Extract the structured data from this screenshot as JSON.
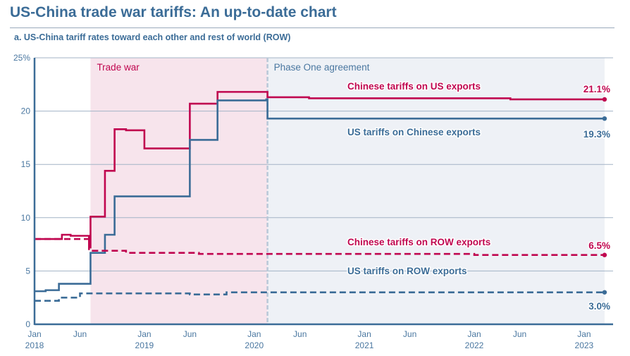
{
  "title": "US-China trade war tariffs: An up-to-date chart",
  "subtitle": "a. US-China tariff rates toward each other and rest of world (ROW)",
  "colors": {
    "china": "#c0064f",
    "us": "#3b6c97",
    "trade_war_bg": "#f7e4ec",
    "phase_one_bg": "#eef1f6",
    "grid": "#a3b3c6"
  },
  "chart_data": {
    "type": "line",
    "step": true,
    "x_range": [
      "2018-01-01",
      "2023-03-10"
    ],
    "ylim": [
      0,
      25
    ],
    "y_ticks": [
      {
        "value": 0,
        "label": "0"
      },
      {
        "value": 5,
        "label": "5"
      },
      {
        "value": 10,
        "label": "10"
      },
      {
        "value": 15,
        "label": "15"
      },
      {
        "value": 20,
        "label": "20"
      },
      {
        "value": 25,
        "label": "25%"
      }
    ],
    "x_ticks": [
      {
        "date": "2018-01-01",
        "label": "Jan",
        "year": "2018"
      },
      {
        "date": "2018-06-01",
        "label": "Jun",
        "year": ""
      },
      {
        "date": "2019-01-01",
        "label": "Jan",
        "year": "2019"
      },
      {
        "date": "2019-06-01",
        "label": "Jun",
        "year": ""
      },
      {
        "date": "2020-01-01",
        "label": "Jan",
        "year": "2020"
      },
      {
        "date": "2020-06-01",
        "label": "Jun",
        "year": ""
      },
      {
        "date": "2021-01-01",
        "label": "Jan",
        "year": "2021"
      },
      {
        "date": "2021-06-01",
        "label": "Jun",
        "year": ""
      },
      {
        "date": "2022-01-01",
        "label": "Jan",
        "year": "2022"
      },
      {
        "date": "2022-06-01",
        "label": "Jun",
        "year": ""
      },
      {
        "date": "2023-01-01",
        "label": "Jan",
        "year": "2023"
      }
    ],
    "grid": true,
    "regions": [
      {
        "label": "Trade war",
        "start": "2018-07-06",
        "end": "2020-02-14",
        "color": "#f7e4ec",
        "text_color": "#c0064f"
      },
      {
        "label": "Phase One agreement",
        "start": "2020-02-14",
        "end": "2023-03-10",
        "color": "#eef1f6",
        "text_color": "#4a77a0"
      }
    ],
    "series": [
      {
        "name": "Chinese tariffs on US exports",
        "end_label": "21.1%",
        "color": "#c0064f",
        "dashed": false,
        "points": [
          [
            "2018-01-01",
            8.0
          ],
          [
            "2018-04-02",
            8.4
          ],
          [
            "2018-05-01",
            8.3
          ],
          [
            "2018-07-01",
            7.2
          ],
          [
            "2018-07-06",
            10.1
          ],
          [
            "2018-08-23",
            14.4
          ],
          [
            "2018-09-24",
            18.3
          ],
          [
            "2018-11-01",
            18.2
          ],
          [
            "2019-01-01",
            16.5
          ],
          [
            "2019-06-01",
            20.7
          ],
          [
            "2019-09-01",
            21.8
          ],
          [
            "2020-02-14",
            21.3
          ],
          [
            "2020-07-01",
            21.2
          ],
          [
            "2022-05-01",
            21.1
          ],
          [
            "2023-03-10",
            21.1
          ]
        ]
      },
      {
        "name": "US tariffs on Chinese exports",
        "end_label": "19.3%",
        "color": "#3b6c97",
        "dashed": false,
        "points": [
          [
            "2018-01-01",
            3.1
          ],
          [
            "2018-02-07",
            3.2
          ],
          [
            "2018-03-23",
            3.8
          ],
          [
            "2018-07-06",
            6.7
          ],
          [
            "2018-08-23",
            8.4
          ],
          [
            "2018-09-24",
            12.0
          ],
          [
            "2019-06-01",
            17.3
          ],
          [
            "2019-09-01",
            21.0
          ],
          [
            "2020-02-10",
            21.1
          ],
          [
            "2020-02-14",
            19.3
          ],
          [
            "2023-03-10",
            19.3
          ]
        ]
      },
      {
        "name": "Chinese tariffs on ROW exports",
        "end_label": "6.5%",
        "color": "#c0064f",
        "dashed": true,
        "points": [
          [
            "2018-01-01",
            8.0
          ],
          [
            "2018-07-01",
            6.9
          ],
          [
            "2018-11-01",
            6.7
          ],
          [
            "2019-07-01",
            6.6
          ],
          [
            "2022-01-01",
            6.5
          ],
          [
            "2023-03-10",
            6.5
          ]
        ]
      },
      {
        "name": "US tariffs on ROW exports",
        "end_label": "3.0%",
        "color": "#3b6c97",
        "dashed": true,
        "points": [
          [
            "2018-01-01",
            2.2
          ],
          [
            "2018-03-23",
            2.5
          ],
          [
            "2018-06-01",
            2.9
          ],
          [
            "2019-06-01",
            2.8
          ],
          [
            "2019-10-01",
            3.0
          ],
          [
            "2023-03-10",
            3.0
          ]
        ]
      }
    ]
  }
}
